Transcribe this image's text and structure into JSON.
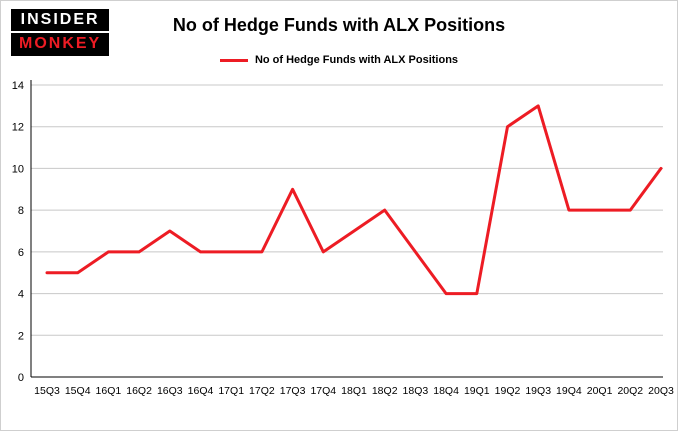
{
  "logo": {
    "line1": "INSIDER",
    "line2": "MONKEY"
  },
  "title": "No of Hedge Funds with ALX Positions",
  "legend": {
    "label": "No of Hedge Funds with ALX Positions"
  },
  "colors": {
    "line": "#ed1c24",
    "grid": "#c8c8c8",
    "axis": "#000000",
    "text": "#000000",
    "background": "#ffffff"
  },
  "chart_data": {
    "type": "line",
    "title": "No of Hedge Funds with ALX Positions",
    "xlabel": "",
    "ylabel": "",
    "categories": [
      "15Q3",
      "15Q4",
      "16Q1",
      "16Q2",
      "16Q3",
      "16Q4",
      "17Q1",
      "17Q2",
      "17Q3",
      "17Q4",
      "18Q1",
      "18Q2",
      "18Q3",
      "18Q4",
      "19Q1",
      "19Q2",
      "19Q3",
      "19Q4",
      "20Q1",
      "20Q2",
      "20Q3"
    ],
    "values": [
      5,
      5,
      6,
      6,
      7,
      6,
      6,
      6,
      9,
      6,
      7,
      8,
      6,
      4,
      4,
      12,
      13,
      8,
      8,
      8,
      10
    ],
    "ylim": [
      0,
      14
    ],
    "yticks": [
      0,
      2,
      4,
      6,
      8,
      10,
      12,
      14
    ],
    "grid": true,
    "legend_position": "top",
    "legend_entries": [
      "No of Hedge Funds with ALX Positions"
    ]
  }
}
